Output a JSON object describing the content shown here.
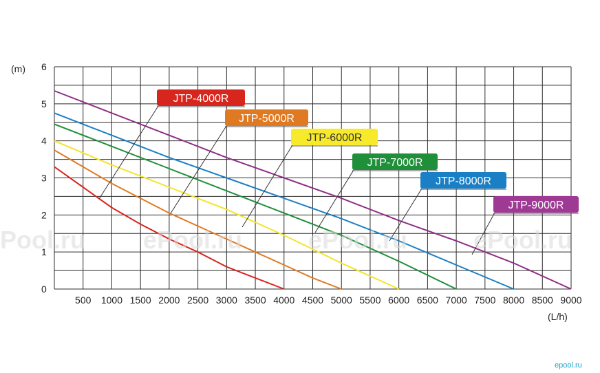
{
  "chart_data": {
    "type": "line",
    "xlabel": "(L/h)",
    "ylabel": "(m)",
    "xlim": [
      0,
      9000
    ],
    "ylim": [
      0,
      6
    ],
    "x_ticks": [
      "500",
      "1000",
      "1500",
      "2000",
      "2500",
      "3000",
      "3500",
      "4000",
      "4500",
      "5000",
      "5500",
      "6000",
      "6500",
      "7000",
      "7500",
      "8000",
      "8500",
      "9000"
    ],
    "y_ticks": [
      "0",
      "1",
      "2",
      "3",
      "4",
      "5",
      "6"
    ],
    "grid": true,
    "series": [
      {
        "name": "JTP-4000R",
        "color": "#d7261d",
        "label_bg": "#d7261d",
        "label_fg": "#ffffff",
        "points": [
          [
            0,
            3.3
          ],
          [
            500,
            2.75
          ],
          [
            1000,
            2.2
          ],
          [
            1500,
            1.75
          ],
          [
            2000,
            1.35
          ],
          [
            2500,
            1.0
          ],
          [
            3000,
            0.6
          ],
          [
            3500,
            0.3
          ],
          [
            4000,
            0
          ]
        ]
      },
      {
        "name": "JTP-5000R",
        "color": "#e07a22",
        "label_bg": "#e07a22",
        "label_fg": "#ffffff",
        "points": [
          [
            0,
            3.75
          ],
          [
            500,
            3.3
          ],
          [
            1000,
            2.85
          ],
          [
            1500,
            2.45
          ],
          [
            2000,
            2.05
          ],
          [
            2500,
            1.7
          ],
          [
            3000,
            1.35
          ],
          [
            3500,
            1.0
          ],
          [
            4000,
            0.65
          ],
          [
            4500,
            0.3
          ],
          [
            5000,
            0
          ]
        ]
      },
      {
        "name": "JTP-6000R",
        "color": "#f2e52a",
        "label_bg": "#f7ea2a",
        "label_fg": "#333333",
        "points": [
          [
            0,
            4.0
          ],
          [
            1000,
            3.35
          ],
          [
            2000,
            2.75
          ],
          [
            3000,
            2.15
          ],
          [
            4000,
            1.45
          ],
          [
            5000,
            0.7
          ],
          [
            6000,
            0
          ]
        ]
      },
      {
        "name": "JTP-7000R",
        "color": "#1f8f3a",
        "label_bg": "#1f8f3a",
        "label_fg": "#ffffff",
        "points": [
          [
            0,
            4.45
          ],
          [
            1000,
            3.85
          ],
          [
            2000,
            3.25
          ],
          [
            3000,
            2.65
          ],
          [
            4000,
            2.05
          ],
          [
            5000,
            1.45
          ],
          [
            6000,
            0.75
          ],
          [
            7000,
            0
          ]
        ]
      },
      {
        "name": "JTP-8000R",
        "color": "#1a7fc4",
        "label_bg": "#1a7fc4",
        "label_fg": "#ffffff",
        "points": [
          [
            0,
            4.75
          ],
          [
            1000,
            4.15
          ],
          [
            2000,
            3.55
          ],
          [
            3000,
            3.0
          ],
          [
            4000,
            2.45
          ],
          [
            5000,
            1.9
          ],
          [
            6000,
            1.3
          ],
          [
            7000,
            0.65
          ],
          [
            8000,
            0
          ]
        ]
      },
      {
        "name": "JTP-9000R",
        "color": "#8e2f87",
        "label_bg": "#9e3a94",
        "label_fg": "#ffffff",
        "points": [
          [
            0,
            5.35
          ],
          [
            1000,
            4.75
          ],
          [
            2000,
            4.15
          ],
          [
            3000,
            3.55
          ],
          [
            4000,
            3.0
          ],
          [
            5000,
            2.45
          ],
          [
            6000,
            1.85
          ],
          [
            7000,
            1.3
          ],
          [
            8000,
            0.7
          ],
          [
            9000,
            0
          ]
        ]
      }
    ]
  },
  "watermark": "ePool.ru",
  "brand": "epool.ru"
}
